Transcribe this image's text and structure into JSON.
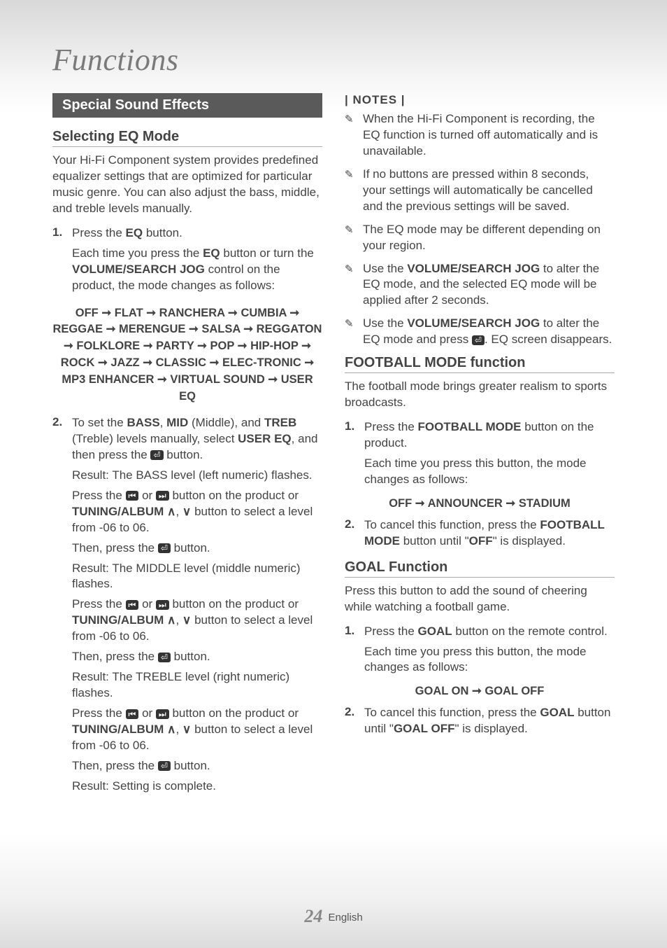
{
  "chapter_title": "Functions",
  "left": {
    "section_bar": "Special Sound Effects",
    "sub_heading": "Selecting EQ Mode",
    "intro": "Your Hi-Fi Component system provides predefined equalizer settings that are optimized for particular music genre. You can also adjust the bass, middle, and treble levels manually.",
    "step1": {
      "num": "1.",
      "l1a": "Press the ",
      "l1b": "EQ",
      "l1c": " button.",
      "l2a": "Each time you press the ",
      "l2b": "EQ",
      "l2c": " button or turn the ",
      "l2d": "VOLUME/SEARCH JOG",
      "l2e": " control on the product, the mode changes as follows:"
    },
    "eq_chain": "OFF ➞ FLAT ➞ RANCHERA ➞ CUMBIA ➞ REGGAE ➞ MERENGUE ➞ SALSA ➞ REGGATON ➞ FOLKLORE ➞ PARTY ➞ POP ➞ HIP-HOP ➞ ROCK ➞ JAZZ ➞ CLASSIC ➞ ELEC-TRONIC ➞ MP3 ENHANCER ➞ VIRTUAL SOUND ➞ USER EQ",
    "step2": {
      "num": "2.",
      "p1a": "To set the ",
      "p1_bass": "BASS",
      "p1b": ", ",
      "p1_mid": "MID",
      "p1c": " (Middle), and ",
      "p1_treb": "TREB",
      "p1d": " (Treble) levels manually, select ",
      "p1_usereq": "USER EQ",
      "p1e": ", and then press the ",
      "p1f": " button.",
      "r1": "Result: The BASS level (left numeric) flashes.",
      "pA_a": "Press the ",
      "pA_b": " or ",
      "pA_c": " button on the product or ",
      "pA_tuning": "TUNING/ALBUM",
      "pA_d": " ",
      "pA_e": ", ",
      "pA_f": " button to select a level from -06 to 06.",
      "pA_then": "Then, press the ",
      "pA_then2": " button.",
      "r2": "Result: The MIDDLE level (middle numeric) flashes.",
      "r3": "Result: The TREBLE level (right numeric) flashes.",
      "r4": "Result: Setting is complete."
    }
  },
  "right": {
    "notes_title": "| NOTES |",
    "notes": [
      "When the Hi-Fi Component is recording, the EQ function is turned off automatically and is unavailable.",
      "If no buttons are pressed within 8 seconds, your settings will automatically be cancelled and the previous settings will be saved.",
      "The EQ mode may be different depending on your region."
    ],
    "note4a": "Use the ",
    "note4_jog": "VOLUME/SEARCH JOG",
    "note4b": " to alter the EQ mode, and the selected EQ mode will be applied after 2 seconds.",
    "note5a": "Use the ",
    "note5_jog": "VOLUME/SEARCH JOG",
    "note5b": " to alter the EQ mode and press ",
    "note5c": ". EQ screen disappears.",
    "football_heading": "FOOTBALL MODE function",
    "football_intro": "The football mode brings greater realism to sports broadcasts.",
    "fb_step1": {
      "num": "1.",
      "a": "Press the ",
      "b": "FOOTBALL MODE",
      "c": " button on the product.",
      "d": "Each time you press this button, the mode changes as follows:"
    },
    "fb_chain": "OFF ➞ ANNOUNCER ➞ STADIUM",
    "fb_step2": {
      "num": "2.",
      "a": "To cancel this function, press the ",
      "b": "FOOTBALL MODE",
      "c": " button until \"",
      "d": "OFF",
      "e": "\" is displayed."
    },
    "goal_heading": "GOAL Function",
    "goal_intro": "Press this button to add the sound of cheering while watching a football game.",
    "goal_step1": {
      "num": "1.",
      "a": "Press the ",
      "b": "GOAL",
      "c": " button on the remote control.",
      "d": "Each time you press this button, the mode changes as follows:"
    },
    "goal_chain": "GOAL ON ➞ GOAL OFF",
    "goal_step2": {
      "num": "2.",
      "a": "To cancel this function, press the ",
      "b": "GOAL",
      "c": " button until \"",
      "d": "GOAL OFF",
      "e": "\" is displayed."
    }
  },
  "footer": {
    "page_num": "24",
    "lang": "English"
  },
  "icons": {
    "enter": "⏎",
    "prev": "⏮",
    "next": "⏭",
    "up": "∧",
    "down": "∨",
    "note_bullet": "✎"
  }
}
